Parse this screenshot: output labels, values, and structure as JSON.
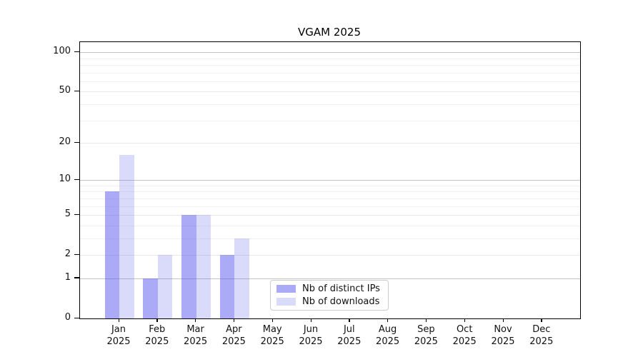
{
  "chart_data": {
    "type": "bar",
    "title": "VGAM 2025",
    "x": {
      "categories": [
        "Jan",
        "Feb",
        "Mar",
        "Apr",
        "May",
        "Jun",
        "Jul",
        "Aug",
        "Sep",
        "Oct",
        "Nov",
        "Dec"
      ],
      "year": "2025"
    },
    "series": [
      {
        "name": "Nb of distinct IPs",
        "fill": "rgba(85,85,238,0.50)",
        "values": [
          8,
          1,
          5,
          2,
          0,
          0,
          0,
          0,
          0,
          0,
          0,
          0
        ]
      },
      {
        "name": "Nb of downloads",
        "fill": "rgba(85,85,238,0.22)",
        "values": [
          16,
          2,
          5,
          3,
          0,
          0,
          0,
          0,
          0,
          0,
          0,
          0
        ]
      }
    ],
    "y_axis": {
      "scale": "log1p",
      "ticks": [
        0,
        1,
        2,
        5,
        10,
        20,
        50,
        100
      ],
      "major_gridlines": [
        1,
        10,
        100
      ],
      "minor_gridlines": [
        3,
        4,
        6,
        7,
        8,
        9,
        30,
        40,
        60,
        70,
        80,
        90
      ],
      "range": [
        0,
        120
      ]
    },
    "legend": {
      "position": "inside-bottom-center",
      "entries": [
        "Nb of distinct IPs",
        "Nb of downloads"
      ]
    },
    "grid": true
  }
}
